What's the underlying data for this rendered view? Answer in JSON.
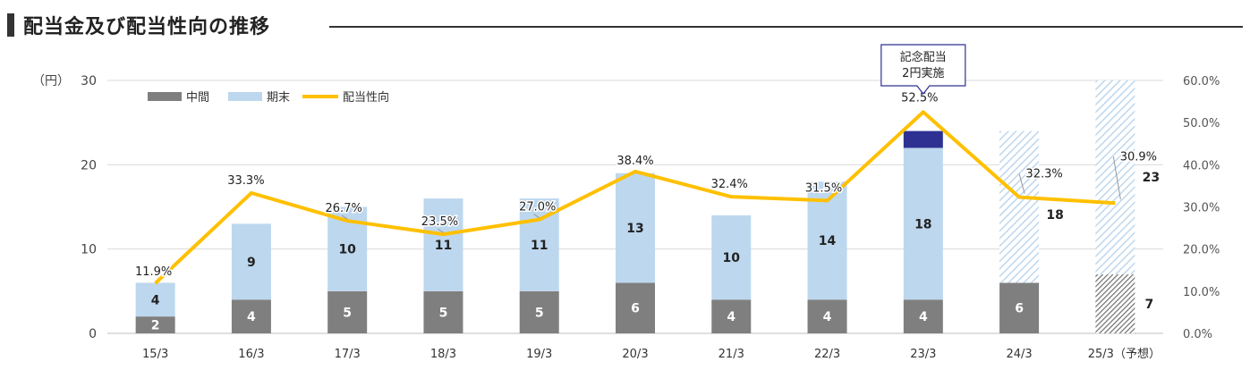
{
  "title": "配当金及び配当性向の推移",
  "chart_data": {
    "type": "bar",
    "stacked": true,
    "categories": [
      "15/3",
      "16/3",
      "17/3",
      "18/3",
      "19/3",
      "20/3",
      "21/3",
      "22/3",
      "23/3",
      "24/3",
      "25/3（予想）"
    ],
    "y_left_unit": "（円）",
    "y_left_ticks": [
      "0",
      "10",
      "20",
      "30"
    ],
    "y_left_range": [
      0,
      30
    ],
    "y_right_ticks": [
      "0.0%",
      "10.0%",
      "20.0%",
      "30.0%",
      "40.0%",
      "50.0%",
      "60.0%"
    ],
    "y_right_range": [
      0,
      60
    ],
    "legend": {
      "placement": "top-left",
      "items": [
        "中間",
        "期末",
        "配当性向"
      ]
    },
    "series": [
      {
        "name": "中間",
        "values": [
          2,
          4,
          5,
          5,
          5,
          6,
          4,
          4,
          4,
          6,
          7
        ],
        "labels": [
          "2",
          "4",
          "5",
          "5",
          "5",
          "6",
          "4",
          "4",
          "4",
          "6",
          "7"
        ]
      },
      {
        "name": "期末",
        "values": [
          4,
          9,
          10,
          11,
          11,
          13,
          10,
          14,
          18,
          18,
          23
        ],
        "labels": [
          "4",
          "9",
          "10",
          "11",
          "11",
          "13",
          "10",
          "14",
          "18",
          "18",
          "23"
        ]
      },
      {
        "name": "記念配当",
        "values": [
          0,
          0,
          0,
          0,
          0,
          0,
          0,
          0,
          2,
          0,
          0
        ]
      },
      {
        "name": "配当性向",
        "axis": "right",
        "values": [
          11.9,
          33.3,
          26.7,
          23.5,
          27.0,
          38.4,
          32.4,
          31.5,
          52.5,
          32.3,
          30.9
        ],
        "labels": [
          "11.9%",
          "33.3%",
          "26.7%",
          "23.5%",
          "27.0%",
          "38.4%",
          "32.4%",
          "31.5%",
          "52.5%",
          "32.3%",
          "30.9%"
        ]
      }
    ],
    "forecast_index": 10,
    "hatched_period_indices": [
      9,
      10
    ],
    "callout": {
      "category_index": 8,
      "lines": [
        "記念配当",
        "2円実施"
      ]
    },
    "colors": {
      "interim": "#7f7f7f",
      "year_end": "#bdd7ee",
      "commemorative": "#2e3192",
      "payout": "#ffc000"
    },
    "grid": true
  }
}
